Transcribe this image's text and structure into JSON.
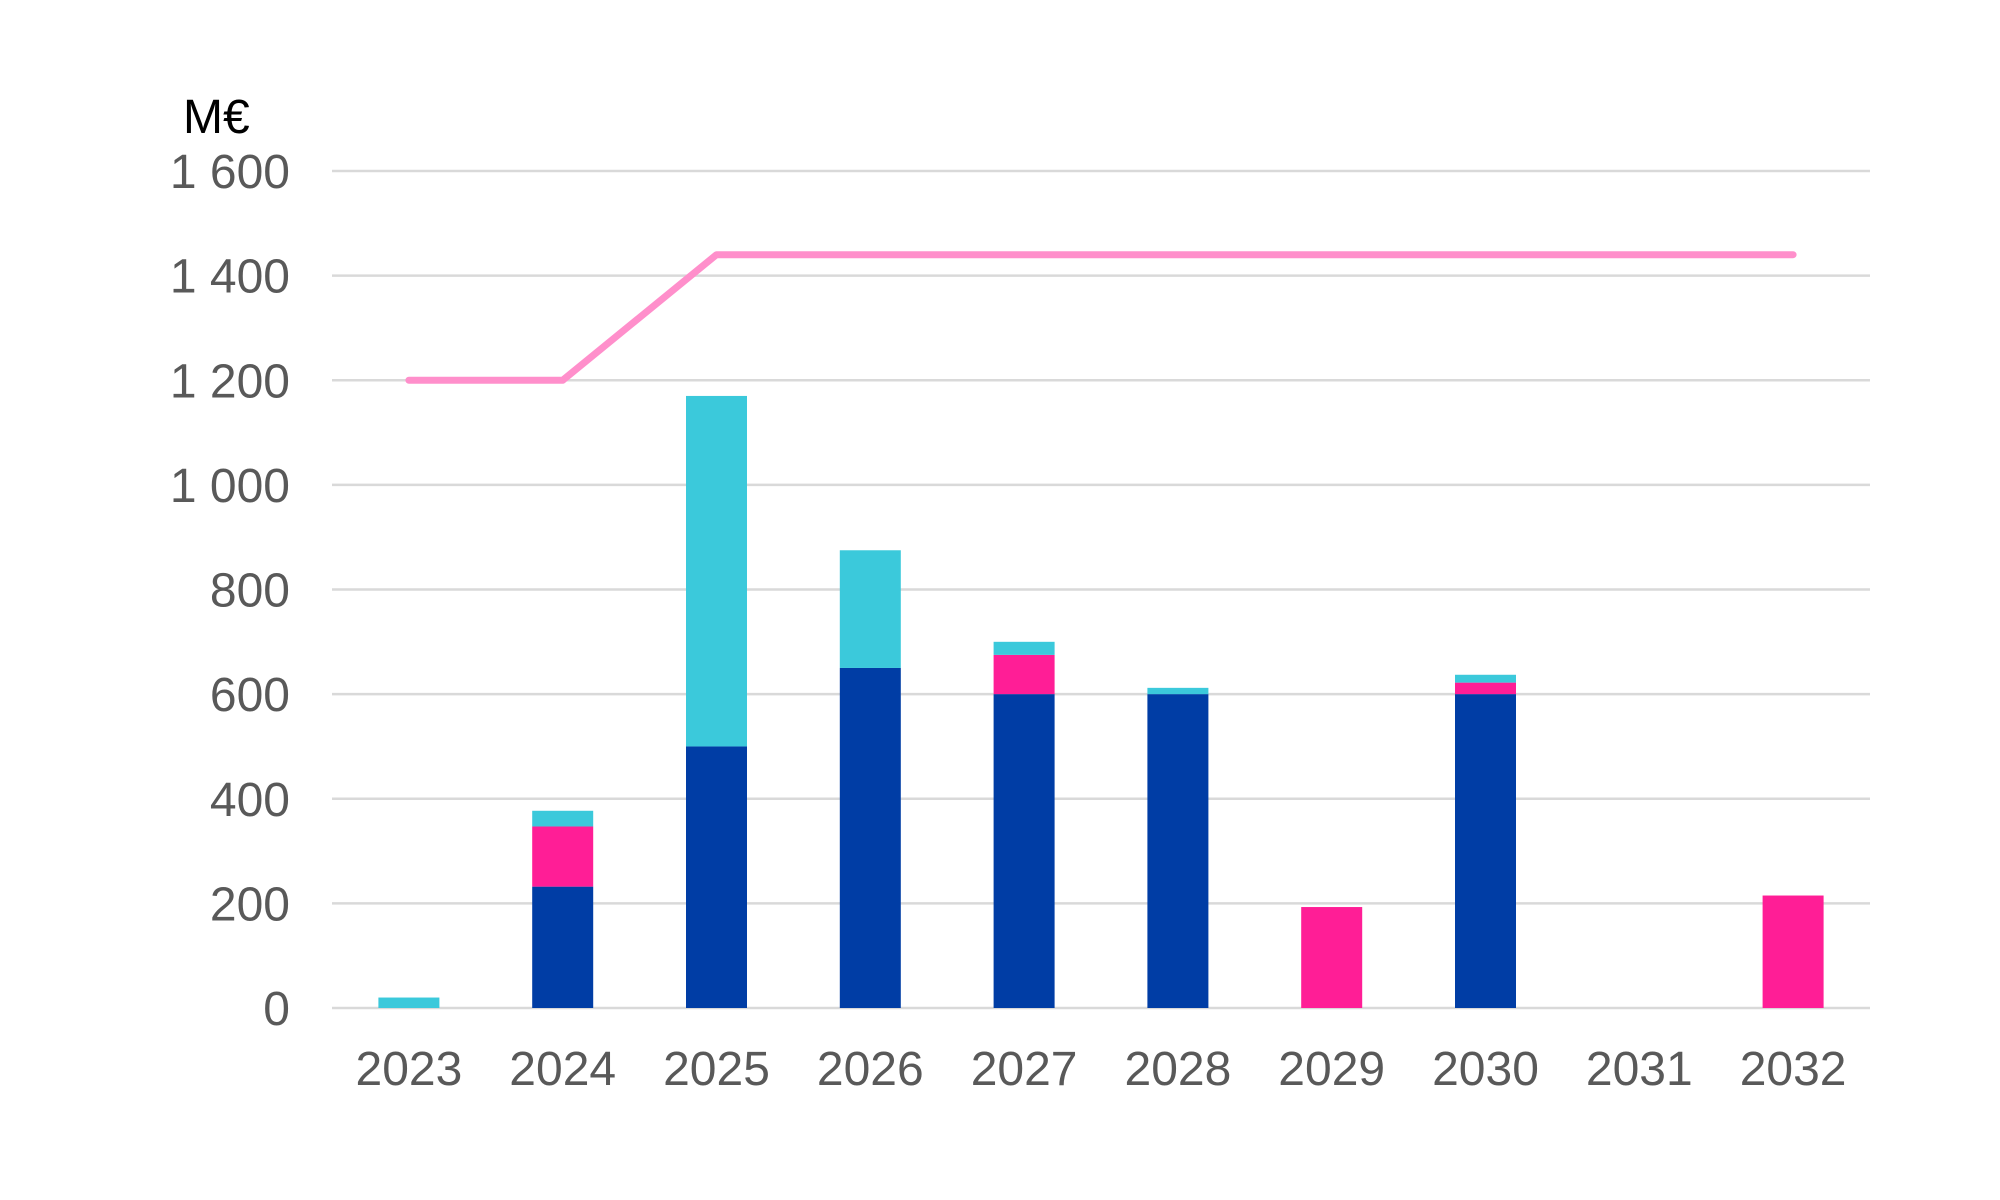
{
  "chart_data": {
    "type": "bar",
    "stacked": true,
    "unit_label": "M€",
    "title": "",
    "xlabel": "",
    "ylabel": "M€",
    "ylim": [
      0,
      1600
    ],
    "yticks": [
      0,
      200,
      400,
      600,
      800,
      1000,
      1200,
      1400,
      1600
    ],
    "ytick_labels": [
      "0",
      "200",
      "400",
      "600",
      "800",
      "1 000",
      "1 200",
      "1 400",
      "1 600"
    ],
    "grid": true,
    "legend": "none",
    "categories": [
      "2023",
      "2024",
      "2025",
      "2026",
      "2027",
      "2028",
      "2029",
      "2030",
      "2031",
      "2032"
    ],
    "series": [
      {
        "color": "#003DA5",
        "values": [
          0,
          232,
          500,
          650,
          600,
          600,
          0,
          600,
          0,
          0
        ]
      },
      {
        "color": "#FF1E96",
        "values": [
          0,
          115,
          0,
          0,
          75,
          0,
          193,
          22,
          0,
          215
        ]
      },
      {
        "color": "#3BC9DB",
        "values": [
          20,
          30,
          670,
          225,
          25,
          12,
          0,
          15,
          0,
          0
        ]
      }
    ],
    "line_series": [
      {
        "type": "line",
        "color": "#FF8FCB",
        "values": [
          1200,
          1200,
          1440,
          1440,
          1440,
          1440,
          1440,
          1440,
          1440,
          1440
        ]
      }
    ]
  }
}
